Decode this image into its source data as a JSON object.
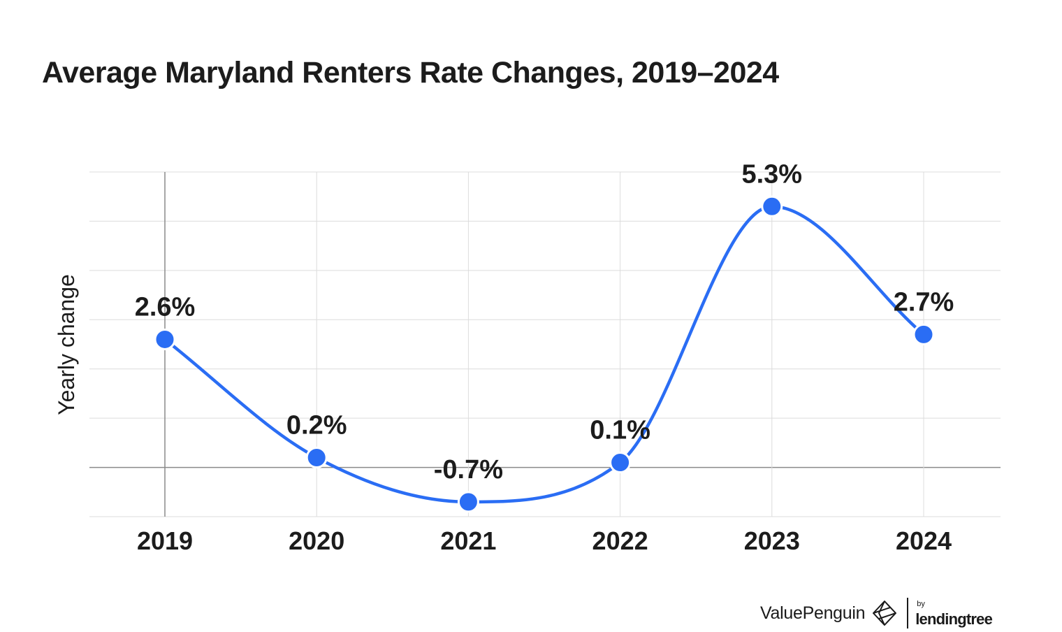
{
  "title": "Average Maryland Renters Rate Changes, 2019–2024",
  "chart_data": {
    "type": "line",
    "title": "Average Maryland Renters Rate Changes, 2019–2024",
    "xlabel": "",
    "ylabel": "Yearly change",
    "categories": [
      "2019",
      "2020",
      "2021",
      "2022",
      "2023",
      "2024"
    ],
    "series": [
      {
        "values": [
          2.6,
          0.2,
          -0.7,
          0.1,
          5.3,
          2.7
        ],
        "labels": [
          "2.6%",
          "0.2%",
          "-0.7%",
          "0.1%",
          "5.3%",
          "2.7%"
        ]
      }
    ],
    "ylim": [
      -1,
      6
    ],
    "grid": true,
    "smooth": true,
    "color": "#2a6df4"
  },
  "footer": {
    "brand": "ValuePenguin",
    "by": "by",
    "partner": "lendingtree"
  }
}
